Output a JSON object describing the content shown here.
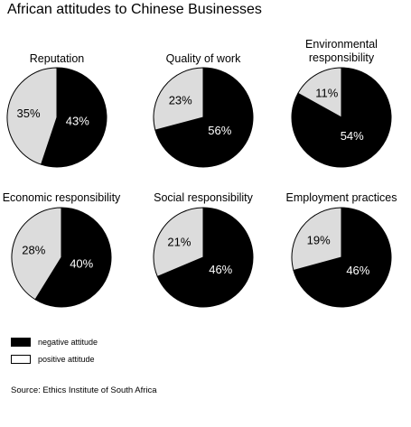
{
  "title": "African attitudes to Chinese Businesses",
  "chart_data": {
    "type": "pie",
    "legend": [
      {
        "label": "negative attitude",
        "color": "#000000"
      },
      {
        "label": "positive attitude",
        "color": "#dcdcdc"
      }
    ],
    "charts": [
      {
        "title_lines": [
          "Reputation"
        ],
        "negative": 43,
        "positive": 35,
        "negative_label": "43%",
        "positive_label": "35%"
      },
      {
        "title_lines": [
          "Quality of work"
        ],
        "negative": 56,
        "positive": 23,
        "negative_label": "56%",
        "positive_label": "23%"
      },
      {
        "title_lines": [
          "Environmental",
          "responsibility"
        ],
        "negative": 54,
        "positive": 11,
        "negative_label": "54%",
        "positive_label": "11%"
      },
      {
        "title_lines": [
          "Economic responsibility"
        ],
        "negative": 40,
        "positive": 28,
        "negative_label": "40%",
        "positive_label": "28%"
      },
      {
        "title_lines": [
          "Social responsibility"
        ],
        "negative": 46,
        "positive": 21,
        "negative_label": "46%",
        "positive_label": "21%"
      },
      {
        "title_lines": [
          "Employment practices"
        ],
        "negative": 46,
        "positive": 19,
        "negative_label": "46%",
        "positive_label": "19%"
      }
    ]
  },
  "source": "Source: Ethics Institute of South Africa"
}
